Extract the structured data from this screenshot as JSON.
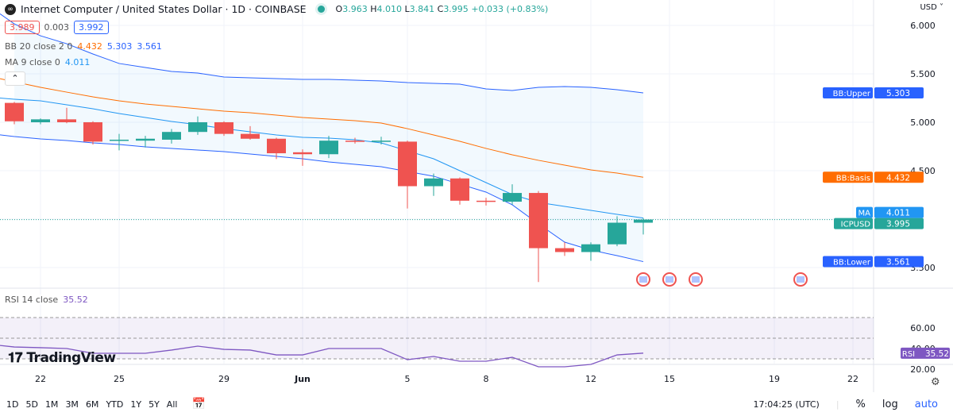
{
  "header": {
    "symbol_title": "Internet Computer / United States Dollar · 1D · COINBASE",
    "ohlc": {
      "o": "3.963",
      "h": "4.010",
      "l": "3.841",
      "c": "3.995",
      "change": "+0.033 (+0.83%)"
    },
    "bid": "3.989",
    "spread": "0.003",
    "ask": "3.992"
  },
  "indicators": {
    "bb": {
      "label": "BB 20 close 2 0",
      "basis": "4.432",
      "upper": "5.303",
      "lower": "3.561"
    },
    "ma": {
      "label": "MA 9 close 0",
      "value": "4.011"
    },
    "rsi": {
      "label": "RSI 14 close",
      "value": "35.52"
    }
  },
  "price_axis": {
    "currency": "USD",
    "ticks": [
      "6.000",
      "5.500",
      "5.000",
      "4.500",
      "3.500"
    ],
    "labels": [
      {
        "name": "BB:Upper",
        "value": "5.303",
        "color": "#2962ff"
      },
      {
        "name": "BB:Basis",
        "value": "4.432",
        "color": "#ff6d00"
      },
      {
        "name": "MA",
        "value": "4.011",
        "color": "#2196f3"
      },
      {
        "name": "ICPUSD",
        "value": "3.995",
        "color": "#26a69a"
      },
      {
        "name": "BB:Lower",
        "value": "3.561",
        "color": "#2962ff"
      }
    ]
  },
  "rsi_axis": {
    "ticks": [
      "60.00",
      "40.00",
      "20.00"
    ],
    "label": {
      "name": "RSI",
      "value": "35.52",
      "color": "#7e57c2"
    }
  },
  "time_axis": {
    "labels": [
      {
        "text": "22",
        "day": 1
      },
      {
        "text": "25",
        "day": 4
      },
      {
        "text": "29",
        "day": 8
      },
      {
        "text": "Jun",
        "day": 11
      },
      {
        "text": "5",
        "day": 15
      },
      {
        "text": "8",
        "day": 18
      },
      {
        "text": "12",
        "day": 22
      },
      {
        "text": "15",
        "day": 25
      },
      {
        "text": "19",
        "day": 29
      },
      {
        "text": "22",
        "day": 32
      }
    ]
  },
  "watermark": "TradingView",
  "bottom_bar": {
    "ranges": [
      "1D",
      "5D",
      "1M",
      "3M",
      "6M",
      "YTD",
      "1Y",
      "5Y",
      "All"
    ],
    "time": "17:04:25 (UTC)",
    "pct": "%",
    "log": "log",
    "auto": "auto"
  },
  "colors": {
    "up": "#26a69a",
    "down": "#ef5350",
    "bb_band": "#2962ff",
    "bb_basis": "#ff6d00",
    "ma": "#2196f3",
    "rsi": "#7e57c2"
  },
  "chart_data": {
    "type": "candlestick",
    "dates": [
      "May 21",
      "May 22",
      "May 23",
      "May 24",
      "May 25",
      "May 26",
      "May 27",
      "May 28",
      "May 29",
      "May 30",
      "May 31",
      "Jun 1",
      "Jun 2",
      "Jun 3",
      "Jun 4",
      "Jun 5",
      "Jun 6",
      "Jun 7",
      "Jun 8",
      "Jun 9",
      "Jun 10",
      "Jun 11",
      "Jun 12",
      "Jun 13",
      "Jun 14"
    ],
    "ohlc": [
      [
        5.2,
        5.21,
        4.98,
        5.01
      ],
      [
        5.0,
        5.04,
        4.98,
        5.03
      ],
      [
        5.03,
        5.15,
        4.99,
        5.0
      ],
      [
        5.0,
        5.01,
        4.77,
        4.8
      ],
      [
        4.81,
        4.88,
        4.71,
        4.82
      ],
      [
        4.81,
        4.86,
        4.74,
        4.83
      ],
      [
        4.82,
        4.93,
        4.78,
        4.9
      ],
      [
        4.9,
        5.06,
        4.87,
        5.0
      ],
      [
        5.0,
        5.01,
        4.86,
        4.88
      ],
      [
        4.88,
        4.96,
        4.82,
        4.83
      ],
      [
        4.83,
        4.84,
        4.62,
        4.68
      ],
      [
        4.69,
        4.72,
        4.55,
        4.67
      ],
      [
        4.67,
        4.86,
        4.63,
        4.81
      ],
      [
        4.81,
        4.84,
        4.78,
        4.8
      ],
      [
        4.8,
        4.85,
        4.77,
        4.81
      ],
      [
        4.8,
        4.81,
        4.11,
        4.34
      ],
      [
        4.34,
        4.47,
        4.24,
        4.42
      ],
      [
        4.42,
        4.43,
        4.15,
        4.19
      ],
      [
        4.19,
        4.22,
        4.14,
        4.18
      ],
      [
        4.18,
        4.36,
        4.15,
        4.27
      ],
      [
        4.27,
        4.29,
        3.35,
        3.7
      ],
      [
        3.7,
        3.76,
        3.62,
        3.66
      ],
      [
        3.66,
        3.76,
        3.57,
        3.74
      ],
      [
        3.74,
        4.03,
        3.72,
        3.963
      ],
      [
        3.963,
        4.01,
        3.841,
        3.995
      ]
    ],
    "bb_upper": [
      6.016,
      5.893,
      5.811,
      5.705,
      5.607,
      5.566,
      5.525,
      5.508,
      5.467,
      5.459,
      5.451,
      5.443,
      5.443,
      5.434,
      5.426,
      5.41,
      5.402,
      5.393,
      5.344,
      5.328,
      5.361,
      5.369,
      5.361,
      5.336,
      5.303
    ],
    "bb_basis": [
      5.418,
      5.361,
      5.311,
      5.262,
      5.221,
      5.189,
      5.164,
      5.139,
      5.115,
      5.098,
      5.074,
      5.049,
      5.033,
      5.016,
      4.992,
      4.934,
      4.869,
      4.803,
      4.73,
      4.664,
      4.607,
      4.557,
      4.508,
      4.475,
      4.432
    ],
    "bb_lower": [
      4.852,
      4.828,
      4.811,
      4.787,
      4.77,
      4.746,
      4.73,
      4.713,
      4.697,
      4.672,
      4.648,
      4.623,
      4.59,
      4.566,
      4.541,
      4.492,
      4.443,
      4.361,
      4.279,
      4.148,
      3.951,
      3.762,
      3.68,
      3.623,
      3.561
    ],
    "ma": [
      5.238,
      5.221,
      5.18,
      5.139,
      5.09,
      5.049,
      5.008,
      4.975,
      4.934,
      4.902,
      4.869,
      4.844,
      4.836,
      4.82,
      4.787,
      4.705,
      4.623,
      4.5,
      4.377,
      4.254,
      4.172,
      4.131,
      4.09,
      4.049,
      4.011
    ],
    "rsi": [
      41.5,
      40.8,
      40,
      35.4,
      35.4,
      35.4,
      38.5,
      42.3,
      39.2,
      38.5,
      33.8,
      33.8,
      40,
      40,
      40,
      29.2,
      32.3,
      27.7,
      27.7,
      31.5,
      22.3,
      22.3,
      24.6,
      33.8,
      35.52
    ],
    "rsi_levels": [
      70,
      50,
      30
    ],
    "price_range": [
      3.3,
      6.1
    ],
    "rsi_range": [
      15,
      75
    ],
    "event_days": [
      "Jun 14",
      "Jun 15",
      "Jun 16",
      "Jun 20"
    ],
    "last_price": 3.995
  }
}
